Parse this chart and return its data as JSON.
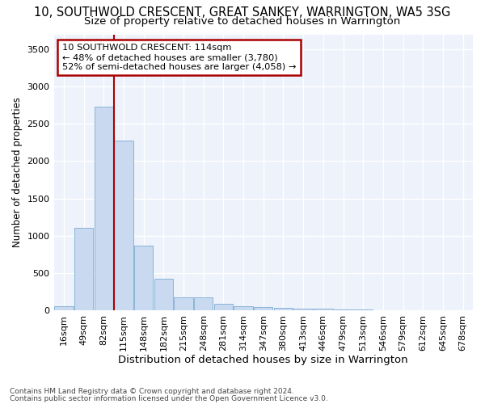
{
  "title1": "10, SOUTHWOLD CRESCENT, GREAT SANKEY, WARRINGTON, WA5 3SG",
  "title2": "Size of property relative to detached houses in Warrington",
  "xlabel": "Distribution of detached houses by size in Warrington",
  "ylabel": "Number of detached properties",
  "categories": [
    "16sqm",
    "49sqm",
    "82sqm",
    "115sqm",
    "148sqm",
    "182sqm",
    "215sqm",
    "248sqm",
    "281sqm",
    "314sqm",
    "347sqm",
    "380sqm",
    "413sqm",
    "446sqm",
    "479sqm",
    "513sqm",
    "546sqm",
    "579sqm",
    "612sqm",
    "645sqm",
    "678sqm"
  ],
  "values": [
    50,
    1100,
    2730,
    2280,
    870,
    420,
    170,
    170,
    85,
    55,
    45,
    30,
    25,
    20,
    8,
    5,
    3,
    2,
    2,
    2,
    2
  ],
  "bar_color": "#c8d9f0",
  "bar_edge_color": "#8ab4d8",
  "vline_color": "#aa0000",
  "annotation_line1": "10 SOUTHWOLD CRESCENT: 114sqm",
  "annotation_line2": "← 48% of detached houses are smaller (3,780)",
  "annotation_line3": "52% of semi-detached houses are larger (4,058) →",
  "box_edge_color": "#aa0000",
  "ylim": [
    0,
    3700
  ],
  "yticks": [
    0,
    500,
    1000,
    1500,
    2000,
    2500,
    3000,
    3500
  ],
  "footnote1": "Contains HM Land Registry data © Crown copyright and database right 2024.",
  "footnote2": "Contains public sector information licensed under the Open Government Licence v3.0.",
  "bg_color": "#edf2fb",
  "grid_color": "#ffffff",
  "title1_fontsize": 10.5,
  "title2_fontsize": 9.5,
  "xlabel_fontsize": 9.5,
  "ylabel_fontsize": 8.5,
  "tick_fontsize": 8,
  "footnote_fontsize": 6.5
}
